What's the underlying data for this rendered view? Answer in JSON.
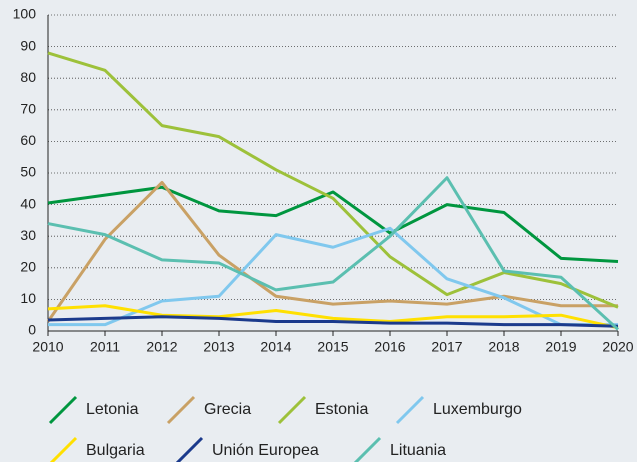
{
  "chart_data": {
    "type": "line",
    "x": [
      2010,
      2011,
      2012,
      2013,
      2014,
      2015,
      2016,
      2017,
      2018,
      2019,
      2020
    ],
    "xlim": [
      2010,
      2020
    ],
    "xticks": [
      2010,
      2011,
      2012,
      2013,
      2014,
      2015,
      2016,
      2017,
      2018,
      2019,
      2020
    ],
    "ylim": [
      0,
      100
    ],
    "yticks": [
      0,
      10,
      20,
      30,
      40,
      50,
      60,
      70,
      80,
      90,
      100
    ],
    "grid": true,
    "series": [
      {
        "name": "Letonia",
        "color": "#00963f",
        "values": [
          40.5,
          43,
          45.5,
          38,
          36.5,
          44,
          31,
          40,
          37.5,
          23,
          22
        ]
      },
      {
        "name": "Grecia",
        "color": "#c9a165",
        "values": [
          3,
          29,
          47,
          24,
          11,
          8.5,
          9.5,
          8.5,
          11,
          8,
          8
        ]
      },
      {
        "name": "Estonia",
        "color": "#9dc13a",
        "values": [
          88,
          82.5,
          65,
          61.5,
          51,
          42,
          23.5,
          11.5,
          18.5,
          15,
          7.5
        ]
      },
      {
        "name": "Luxemburgo",
        "color": "#80c8ee",
        "values": [
          2,
          2,
          9.5,
          11,
          30.5,
          26.5,
          32.5,
          16.5,
          10.5,
          2,
          2
        ]
      },
      {
        "name": "Bulgaria",
        "color": "#ffe000",
        "values": [
          7,
          8,
          5,
          4.5,
          6.5,
          4,
          3,
          4.5,
          4.5,
          5,
          1
        ]
      },
      {
        "name": "Unión Europea",
        "color": "#1b3a8c",
        "values": [
          3.5,
          4,
          4.5,
          4,
          3,
          3,
          2.5,
          2.5,
          2,
          2,
          1.5
        ]
      },
      {
        "name": "Lituania",
        "color": "#5bbfb0",
        "values": [
          34,
          30.5,
          22.5,
          21.5,
          13,
          15.5,
          30,
          48.5,
          19,
          17,
          0.5
        ]
      }
    ]
  }
}
